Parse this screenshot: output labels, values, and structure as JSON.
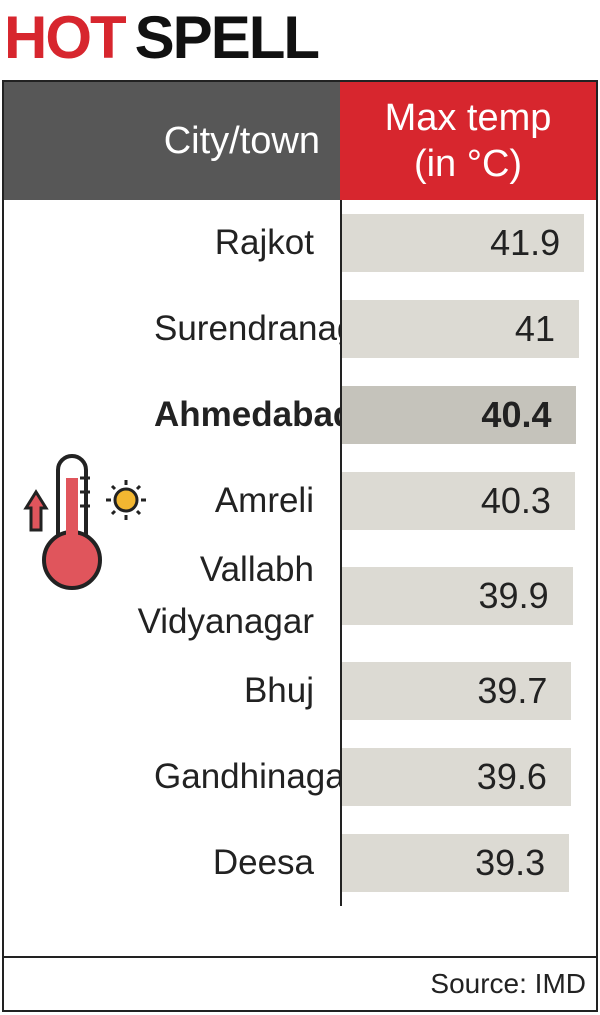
{
  "header": {
    "title_red": "HOT",
    "title_black": "SPELL"
  },
  "table": {
    "columns": [
      "City/town",
      "Max temp (in °C)"
    ],
    "rows": [
      {
        "city": "Rajkot",
        "temp": 41.9
      },
      {
        "city": "Surendranagar",
        "temp": 41
      },
      {
        "city": "Ahmedabad",
        "temp": 40.4,
        "bold": true
      },
      {
        "city": "Amreli",
        "temp": 40.3
      },
      {
        "city": "Vallabh Vidyanagar",
        "temp": 39.9
      },
      {
        "city": "Bhuj",
        "temp": 39.7
      },
      {
        "city": "Gandhinagar",
        "temp": 39.6
      },
      {
        "city": "Deesa",
        "temp": 39.3
      }
    ]
  },
  "source": "Source: IMD"
}
